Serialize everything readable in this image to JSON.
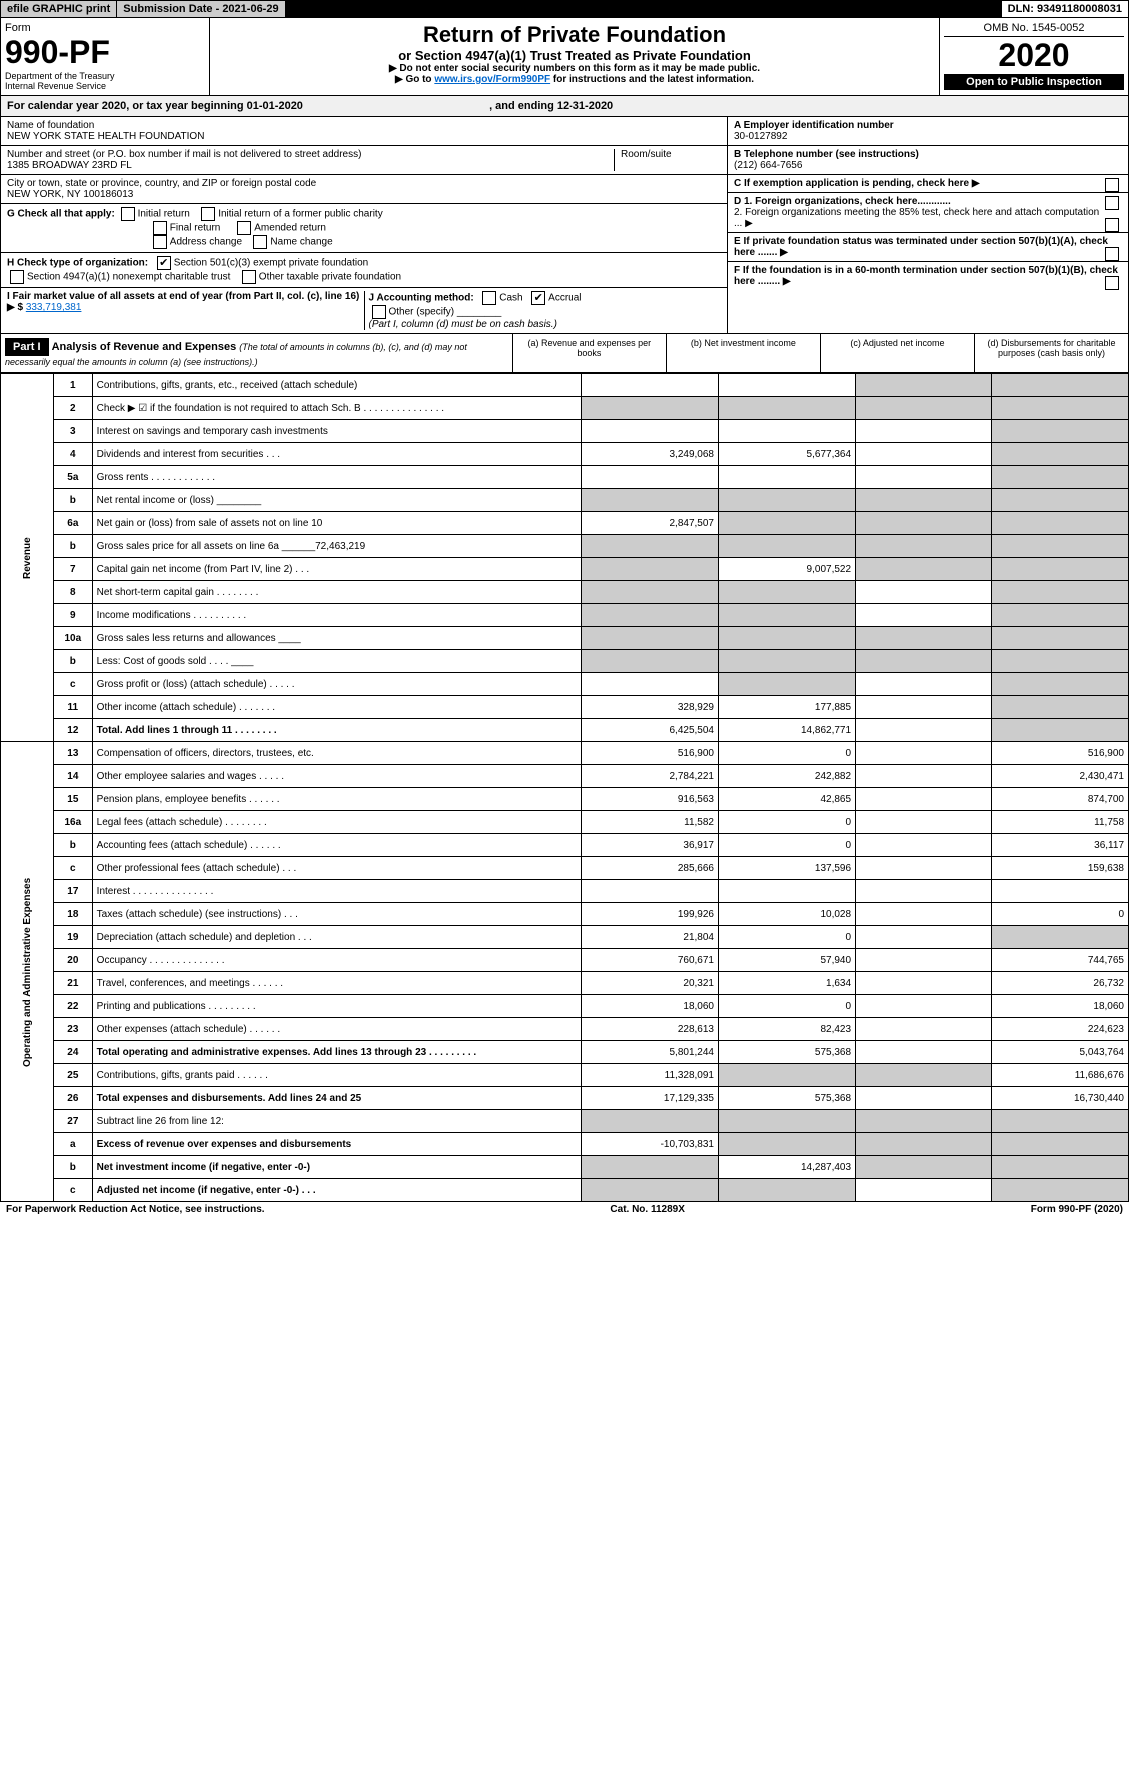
{
  "top_bar": {
    "efile": "efile GRAPHIC print",
    "submission_label": "Submission Date - 2021-06-29",
    "dln": "DLN: 93491180008031"
  },
  "header": {
    "form_label": "Form",
    "form_number": "990-PF",
    "dept": "Department of the Treasury",
    "irs": "Internal Revenue Service",
    "title": "Return of Private Foundation",
    "subtitle": "or Section 4947(a)(1) Trust Treated as Private Foundation",
    "note1": "▶ Do not enter social security numbers on this form as it may be made public.",
    "note2_pre": "▶ Go to ",
    "note2_link": "www.irs.gov/Form990PF",
    "note2_post": " for instructions and the latest information.",
    "omb": "OMB No. 1545-0052",
    "year": "2020",
    "open_public": "Open to Public Inspection"
  },
  "calendar": {
    "text_pre": "For calendar year 2020, or tax year beginning ",
    "begin": "01-01-2020",
    "text_mid": " , and ending ",
    "end": "12-31-2020"
  },
  "foundation": {
    "name_label": "Name of foundation",
    "name": "NEW YORK STATE HEALTH FOUNDATION",
    "addr_label": "Number and street (or P.O. box number if mail is not delivered to street address)",
    "addr": "1385 BROADWAY 23RD FL",
    "room_label": "Room/suite",
    "city_label": "City or town, state or province, country, and ZIP or foreign postal code",
    "city": "NEW YORK, NY  100186013",
    "ein_label": "A Employer identification number",
    "ein": "30-0127892",
    "phone_label": "B Telephone number (see instructions)",
    "phone": "(212) 664-7656",
    "c_label": "C If exemption application is pending, check here ▶",
    "d1": "D 1. Foreign organizations, check here............",
    "d2": "2. Foreign organizations meeting the 85% test, check here and attach computation ... ▶",
    "e": "E  If private foundation status was terminated under section 507(b)(1)(A), check here ....... ▶",
    "f": "F  If the foundation is in a 60-month termination under section 507(b)(1)(B), check here ........ ▶"
  },
  "check_g": {
    "label": "G Check all that apply:",
    "opts": [
      "Initial return",
      "Initial return of a former public charity",
      "Final return",
      "Amended return",
      "Address change",
      "Name change"
    ]
  },
  "check_h": {
    "label": "H Check type of organization:",
    "opt1": "Section 501(c)(3) exempt private foundation",
    "opt2": "Section 4947(a)(1) nonexempt charitable trust",
    "opt3": "Other taxable private foundation"
  },
  "fmv": {
    "label": "I Fair market value of all assets at end of year (from Part II, col. (c), line 16) ▶ $",
    "value": "333,719,381"
  },
  "accounting": {
    "label": "J Accounting method:",
    "cash": "Cash",
    "accrual": "Accrual",
    "other": "Other (specify)",
    "note": "(Part I, column (d) must be on cash basis.)"
  },
  "part1": {
    "header": "Part I",
    "title": "Analysis of Revenue and Expenses",
    "subtitle": "(The total of amounts in columns (b), (c), and (d) may not necessarily equal the amounts in column (a) (see instructions).)",
    "cols": {
      "a": "(a)   Revenue and expenses per books",
      "b": "(b)  Net investment income",
      "c": "(c)  Adjusted net income",
      "d": "(d)  Disbursements for charitable purposes (cash basis only)"
    }
  },
  "section_labels": {
    "revenue": "Revenue",
    "expenses": "Operating and Administrative Expenses"
  },
  "rows": [
    {
      "n": "1",
      "desc": "Contributions, gifts, grants, etc., received (attach schedule)",
      "a": "",
      "b": "",
      "c": "",
      "d": "",
      "shade_c": true,
      "shade_d": true
    },
    {
      "n": "2",
      "desc": "Check ▶ ☑ if the foundation is not required to attach Sch. B     .   .   .   .   .   .   .   .   .   .   .   .   .   .   .",
      "a": "",
      "b": "",
      "c": "",
      "d": "",
      "shade_a": true,
      "shade_b": true,
      "shade_c": true,
      "shade_d": true
    },
    {
      "n": "3",
      "desc": "Interest on savings and temporary cash investments",
      "a": "",
      "b": "",
      "c": "",
      "d": "",
      "shade_d": true
    },
    {
      "n": "4",
      "desc": "Dividends and interest from securities     .    .    .",
      "a": "3,249,068",
      "b": "5,677,364",
      "c": "",
      "d": "",
      "shade_d": true
    },
    {
      "n": "5a",
      "desc": "Gross rents   .   .   .   .   .   .   .   .   .   .   .   .",
      "a": "",
      "b": "",
      "c": "",
      "d": "",
      "shade_d": true
    },
    {
      "n": "b",
      "desc": "Net rental income or (loss)   ________",
      "a": "",
      "b": "",
      "c": "",
      "d": "",
      "shade_a": true,
      "shade_b": true,
      "shade_c": true,
      "shade_d": true
    },
    {
      "n": "6a",
      "desc": "Net gain or (loss) from sale of assets not on line 10",
      "a": "2,847,507",
      "b": "",
      "c": "",
      "d": "",
      "shade_b": true,
      "shade_c": true,
      "shade_d": true
    },
    {
      "n": "b",
      "desc": "Gross sales price for all assets on line 6a ______72,463,219",
      "a": "",
      "b": "",
      "c": "",
      "d": "",
      "shade_a": true,
      "shade_b": true,
      "shade_c": true,
      "shade_d": true
    },
    {
      "n": "7",
      "desc": "Capital gain net income (from Part IV, line 2)    .   .   .",
      "a": "",
      "b": "9,007,522",
      "c": "",
      "d": "",
      "shade_a": true,
      "shade_c": true,
      "shade_d": true
    },
    {
      "n": "8",
      "desc": "Net short-term capital gain   .   .   .   .   .   .   .   .",
      "a": "",
      "b": "",
      "c": "",
      "d": "",
      "shade_a": true,
      "shade_b": true,
      "shade_d": true
    },
    {
      "n": "9",
      "desc": "Income modifications   .   .   .   .   .   .   .   .   .   .",
      "a": "",
      "b": "",
      "c": "",
      "d": "",
      "shade_a": true,
      "shade_b": true,
      "shade_d": true
    },
    {
      "n": "10a",
      "desc": "Gross sales less returns and allowances  ____",
      "a": "",
      "b": "",
      "c": "",
      "d": "",
      "shade_a": true,
      "shade_b": true,
      "shade_c": true,
      "shade_d": true
    },
    {
      "n": "b",
      "desc": "Less: Cost of goods sold        .   .   .   .   ____",
      "a": "",
      "b": "",
      "c": "",
      "d": "",
      "shade_a": true,
      "shade_b": true,
      "shade_c": true,
      "shade_d": true
    },
    {
      "n": "c",
      "desc": "Gross profit or (loss) (attach schedule)    .   .   .   .   .",
      "a": "",
      "b": "",
      "c": "",
      "d": "",
      "shade_b": true,
      "shade_d": true
    },
    {
      "n": "11",
      "desc": "Other income (attach schedule)    .   .   .   .   .   .   .",
      "a": "328,929",
      "b": "177,885",
      "c": "",
      "d": "",
      "shade_d": true
    },
    {
      "n": "12",
      "desc": "Total. Add lines 1 through 11    .   .   .   .   .   .   .   .",
      "a": "6,425,504",
      "b": "14,862,771",
      "c": "",
      "d": "",
      "shade_d": true,
      "bold": true
    },
    {
      "n": "13",
      "desc": "Compensation of officers, directors, trustees, etc.",
      "a": "516,900",
      "b": "0",
      "c": "",
      "d": "516,900"
    },
    {
      "n": "14",
      "desc": "Other employee salaries and wages    .   .   .   .   .",
      "a": "2,784,221",
      "b": "242,882",
      "c": "",
      "d": "2,430,471"
    },
    {
      "n": "15",
      "desc": "Pension plans, employee benefits    .   .   .   .   .   .",
      "a": "916,563",
      "b": "42,865",
      "c": "",
      "d": "874,700"
    },
    {
      "n": "16a",
      "desc": "Legal fees (attach schedule)   .   .   .   .   .   .   .   .",
      "a": "11,582",
      "b": "0",
      "c": "",
      "d": "11,758"
    },
    {
      "n": "b",
      "desc": "Accounting fees (attach schedule)   .   .   .   .   .   .",
      "a": "36,917",
      "b": "0",
      "c": "",
      "d": "36,117"
    },
    {
      "n": "c",
      "desc": "Other professional fees (attach schedule)     .   .   .",
      "a": "285,666",
      "b": "137,596",
      "c": "",
      "d": "159,638"
    },
    {
      "n": "17",
      "desc": "Interest    .   .   .   .   .   .   .   .   .   .   .   .   .   .   .",
      "a": "",
      "b": "",
      "c": "",
      "d": ""
    },
    {
      "n": "18",
      "desc": "Taxes (attach schedule) (see instructions)     .   .   .",
      "a": "199,926",
      "b": "10,028",
      "c": "",
      "d": "0"
    },
    {
      "n": "19",
      "desc": "Depreciation (attach schedule) and depletion    .   .   .",
      "a": "21,804",
      "b": "0",
      "c": "",
      "d": "",
      "shade_d": true
    },
    {
      "n": "20",
      "desc": "Occupancy   .   .   .   .   .   .   .   .   .   .   .   .   .   .",
      "a": "760,671",
      "b": "57,940",
      "c": "",
      "d": "744,765"
    },
    {
      "n": "21",
      "desc": "Travel, conferences, and meetings   .   .   .   .   .   .",
      "a": "20,321",
      "b": "1,634",
      "c": "",
      "d": "26,732"
    },
    {
      "n": "22",
      "desc": "Printing and publications   .   .   .   .   .   .   .   .   .",
      "a": "18,060",
      "b": "0",
      "c": "",
      "d": "18,060"
    },
    {
      "n": "23",
      "desc": "Other expenses (attach schedule)   .   .   .   .   .   .",
      "a": "228,613",
      "b": "82,423",
      "c": "",
      "d": "224,623"
    },
    {
      "n": "24",
      "desc": "Total operating and administrative expenses. Add lines 13 through 23   .   .   .   .   .   .   .   .   .",
      "a": "5,801,244",
      "b": "575,368",
      "c": "",
      "d": "5,043,764",
      "bold": true
    },
    {
      "n": "25",
      "desc": "Contributions, gifts, grants paid       .   .   .   .   .   .",
      "a": "11,328,091",
      "b": "",
      "c": "",
      "d": "11,686,676",
      "shade_b": true,
      "shade_c": true
    },
    {
      "n": "26",
      "desc": "Total expenses and disbursements. Add lines 24 and 25",
      "a": "17,129,335",
      "b": "575,368",
      "c": "",
      "d": "16,730,440",
      "bold": true
    },
    {
      "n": "27",
      "desc": "Subtract line 26 from line 12:",
      "a": "",
      "b": "",
      "c": "",
      "d": "",
      "shade_a": true,
      "shade_b": true,
      "shade_c": true,
      "shade_d": true
    },
    {
      "n": "a",
      "desc": "Excess of revenue over expenses and disbursements",
      "a": "-10,703,831",
      "b": "",
      "c": "",
      "d": "",
      "shade_b": true,
      "shade_c": true,
      "shade_d": true,
      "bold": true
    },
    {
      "n": "b",
      "desc": "Net investment income (if negative, enter -0-)",
      "a": "",
      "b": "14,287,403",
      "c": "",
      "d": "",
      "shade_a": true,
      "shade_c": true,
      "shade_d": true,
      "bold": true
    },
    {
      "n": "c",
      "desc": "Adjusted net income (if negative, enter -0-)    .   .   .",
      "a": "",
      "b": "",
      "c": "",
      "d": "",
      "shade_a": true,
      "shade_b": true,
      "shade_d": true,
      "bold": true
    }
  ],
  "footer": {
    "left": "For Paperwork Reduction Act Notice, see instructions.",
    "center": "Cat. No. 11289X",
    "right": "Form 990-PF (2020)"
  },
  "colors": {
    "shade": "#cccccc",
    "link": "#0066cc",
    "black": "#000000",
    "white": "#ffffff"
  }
}
